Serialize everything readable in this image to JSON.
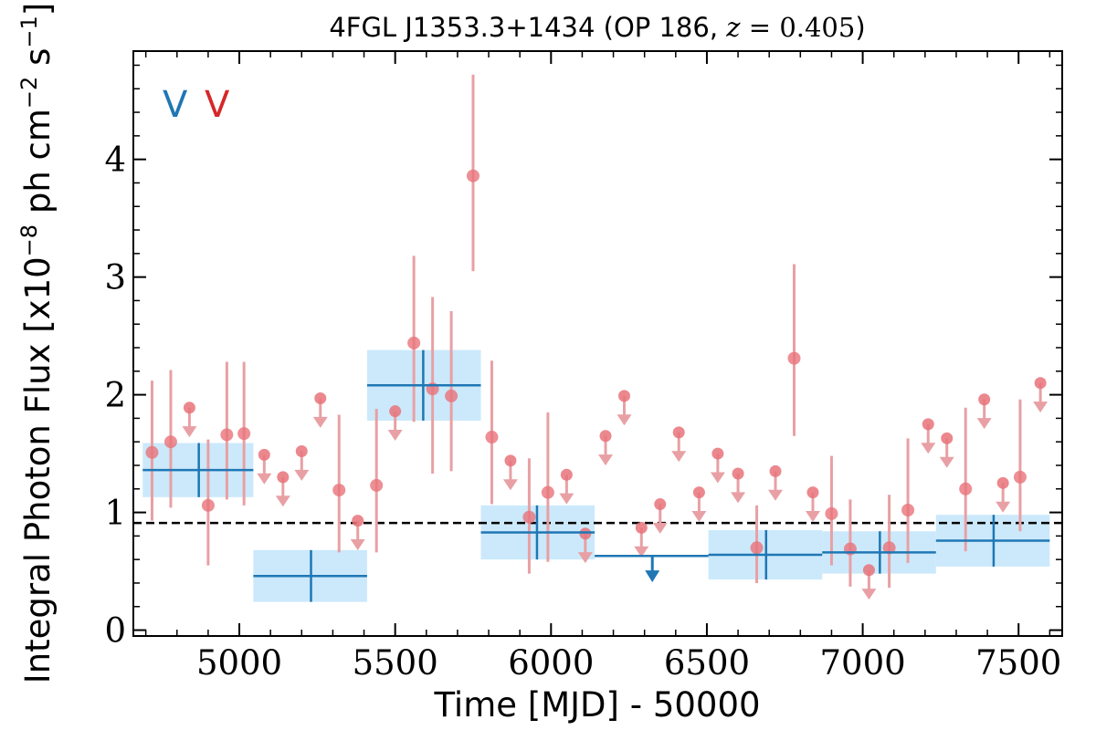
{
  "chart_data": {
    "type": "scatter",
    "title": {
      "prefix": "4FGL J1353.3+1434 (OP 186, ",
      "z_symbol": "z",
      "equals": " = ",
      "z_value": "0.405",
      "suffix": ")"
    },
    "xlabel": "Time [MJD] - 50000",
    "ylabel": {
      "prefix": "Integral Photon Flux [x10",
      "exp1": "−8",
      "middle": " ph cm",
      "exp2": "−2",
      "middle2": " s",
      "exp3": "−1",
      "suffix": "]"
    },
    "xlim": [
      4660,
      7640
    ],
    "ylim": [
      -0.05,
      4.92
    ],
    "xticks": [
      5000,
      5500,
      6000,
      6500,
      7000,
      7500
    ],
    "xtick_labels": [
      "5000",
      "5500",
      "6000",
      "6500",
      "7000",
      "7500"
    ],
    "yticks": [
      0,
      1,
      2,
      3,
      4
    ],
    "ytick_labels": [
      "0",
      "1",
      "2",
      "3",
      "4"
    ],
    "reference_line_y": 0.91,
    "legend": {
      "placement": "top-left",
      "entries": [
        {
          "text": "V",
          "color": "#1f77b4"
        },
        {
          "text": "V",
          "color": "#d62728"
        }
      ]
    },
    "colors": {
      "long_bin_line": "#1f77b4",
      "long_bin_band": "#cbe9fb",
      "short_bin_point": "#e8737a",
      "short_bin_error": "#e8a0a4"
    },
    "long_bins": [
      {
        "x_start": 4690,
        "x_end": 5045,
        "x_center": 4870,
        "y": 1.36,
        "y_err": 0.23,
        "upper_limit": false
      },
      {
        "x_start": 5045,
        "x_end": 5410,
        "x_center": 5230,
        "y": 0.46,
        "y_err": 0.22,
        "upper_limit": false
      },
      {
        "x_start": 5410,
        "x_end": 5775,
        "x_center": 5590,
        "y": 2.08,
        "y_err": 0.3,
        "upper_limit": false
      },
      {
        "x_start": 5775,
        "x_end": 6140,
        "x_center": 5955,
        "y": 0.83,
        "y_err": 0.23,
        "upper_limit": false
      },
      {
        "x_start": 6140,
        "x_end": 6505,
        "x_center": 6325,
        "y": 0.63,
        "y_err": 0,
        "upper_limit": true
      },
      {
        "x_start": 6505,
        "x_end": 6870,
        "x_center": 6690,
        "y": 0.64,
        "y_err": 0.21,
        "upper_limit": false
      },
      {
        "x_start": 6870,
        "x_end": 7235,
        "x_center": 7055,
        "y": 0.66,
        "y_err": 0.18,
        "upper_limit": false
      },
      {
        "x_start": 7235,
        "x_end": 7600,
        "x_center": 7420,
        "y": 0.76,
        "y_err": 0.22,
        "upper_limit": false
      }
    ],
    "short_bins": [
      {
        "x": 4720,
        "y": 1.51,
        "lo": 0.93,
        "hi": 2.12,
        "upper_limit": false
      },
      {
        "x": 4780,
        "y": 1.6,
        "lo": 1.04,
        "hi": 2.21,
        "upper_limit": false
      },
      {
        "x": 4840,
        "y": 1.89,
        "upper_limit": true
      },
      {
        "x": 4900,
        "y": 1.06,
        "lo": 0.55,
        "hi": 1.62,
        "upper_limit": false
      },
      {
        "x": 4960,
        "y": 1.66,
        "lo": 1.11,
        "hi": 2.28,
        "upper_limit": false
      },
      {
        "x": 5015,
        "y": 1.67,
        "lo": 1.06,
        "hi": 2.28,
        "upper_limit": false
      },
      {
        "x": 5080,
        "y": 1.49,
        "upper_limit": true
      },
      {
        "x": 5140,
        "y": 1.3,
        "upper_limit": true
      },
      {
        "x": 5200,
        "y": 1.52,
        "upper_limit": true
      },
      {
        "x": 5260,
        "y": 1.97,
        "upper_limit": true
      },
      {
        "x": 5320,
        "y": 1.19,
        "lo": 0.66,
        "hi": 1.83,
        "upper_limit": false
      },
      {
        "x": 5380,
        "y": 0.93,
        "upper_limit": true
      },
      {
        "x": 5440,
        "y": 1.23,
        "lo": 0.66,
        "hi": 1.88,
        "upper_limit": false
      },
      {
        "x": 5500,
        "y": 1.86,
        "upper_limit": true
      },
      {
        "x": 5560,
        "y": 2.44,
        "lo": 1.77,
        "hi": 3.18,
        "upper_limit": false
      },
      {
        "x": 5620,
        "y": 2.05,
        "lo": 1.33,
        "hi": 2.83,
        "upper_limit": false
      },
      {
        "x": 5680,
        "y": 1.99,
        "lo": 1.35,
        "hi": 2.71,
        "upper_limit": false
      },
      {
        "x": 5750,
        "y": 3.86,
        "lo": 3.05,
        "hi": 4.72,
        "upper_limit": false
      },
      {
        "x": 5810,
        "y": 1.64,
        "lo": 1.07,
        "hi": 2.29,
        "upper_limit": false
      },
      {
        "x": 5870,
        "y": 1.44,
        "upper_limit": true
      },
      {
        "x": 5930,
        "y": 0.96,
        "lo": 0.48,
        "hi": 1.46,
        "upper_limit": false
      },
      {
        "x": 5990,
        "y": 1.17,
        "lo": 0.58,
        "hi": 1.85,
        "upper_limit": false
      },
      {
        "x": 6050,
        "y": 1.32,
        "upper_limit": true
      },
      {
        "x": 6110,
        "y": 0.82,
        "upper_limit": true
      },
      {
        "x": 6175,
        "y": 1.65,
        "upper_limit": true
      },
      {
        "x": 6235,
        "y": 1.99,
        "upper_limit": true
      },
      {
        "x": 6290,
        "y": 0.87,
        "upper_limit": true
      },
      {
        "x": 6350,
        "y": 1.07,
        "upper_limit": true
      },
      {
        "x": 6410,
        "y": 1.68,
        "upper_limit": true
      },
      {
        "x": 6475,
        "y": 1.17,
        "upper_limit": true
      },
      {
        "x": 6535,
        "y": 1.5,
        "upper_limit": true
      },
      {
        "x": 6600,
        "y": 1.33,
        "upper_limit": true
      },
      {
        "x": 6660,
        "y": 0.7,
        "lo": 0.4,
        "hi": 1.06,
        "upper_limit": false
      },
      {
        "x": 6720,
        "y": 1.35,
        "upper_limit": true
      },
      {
        "x": 6780,
        "y": 2.31,
        "lo": 1.65,
        "hi": 3.11,
        "upper_limit": false
      },
      {
        "x": 6840,
        "y": 1.17,
        "upper_limit": true
      },
      {
        "x": 6900,
        "y": 0.99,
        "lo": 0.55,
        "hi": 1.48,
        "upper_limit": false
      },
      {
        "x": 6960,
        "y": 0.69,
        "lo": 0.37,
        "hi": 1.11,
        "upper_limit": false
      },
      {
        "x": 7020,
        "y": 0.51,
        "upper_limit": true
      },
      {
        "x": 7085,
        "y": 0.7,
        "lo": 0.36,
        "hi": 1.15,
        "upper_limit": false
      },
      {
        "x": 7145,
        "y": 1.02,
        "lo": 0.57,
        "hi": 1.63,
        "upper_limit": false
      },
      {
        "x": 7210,
        "y": 1.75,
        "upper_limit": true
      },
      {
        "x": 7270,
        "y": 1.63,
        "upper_limit": true
      },
      {
        "x": 7330,
        "y": 1.2,
        "lo": 0.67,
        "hi": 1.89,
        "upper_limit": false
      },
      {
        "x": 7390,
        "y": 1.96,
        "upper_limit": true
      },
      {
        "x": 7450,
        "y": 1.25,
        "upper_limit": true
      },
      {
        "x": 7505,
        "y": 1.3,
        "lo": 0.84,
        "hi": 1.96,
        "upper_limit": false
      },
      {
        "x": 7570,
        "y": 2.1,
        "upper_limit": true
      }
    ]
  }
}
